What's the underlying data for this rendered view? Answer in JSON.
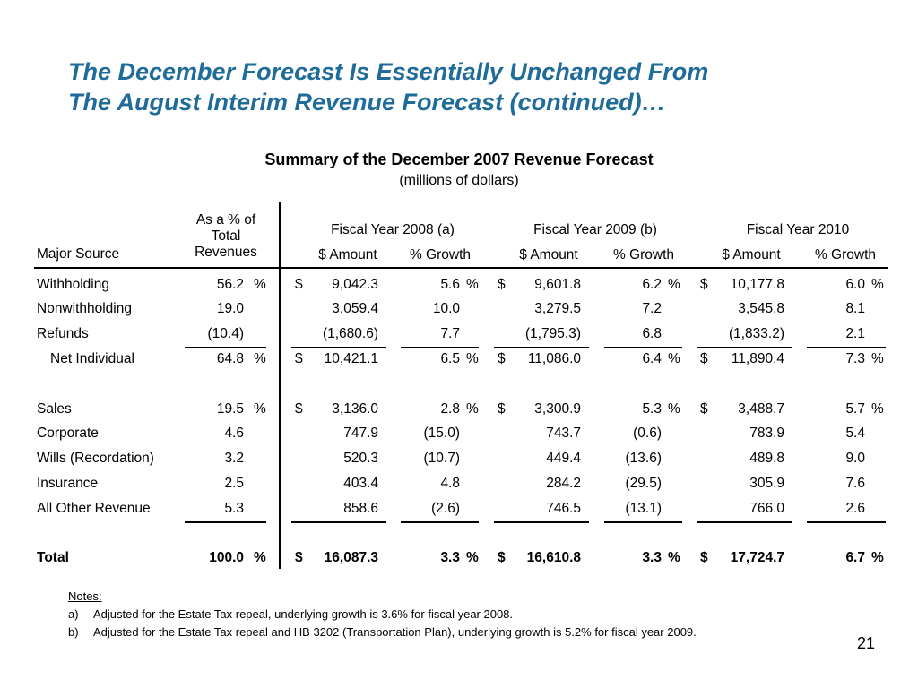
{
  "title_line1": "The December Forecast Is Essentially Unchanged From",
  "title_line2": "The August Interim Revenue Forecast (continued)…",
  "table_title": "Summary of the December 2007 Revenue Forecast",
  "table_units": "(millions of dollars)",
  "headers": {
    "major_source": "Major Source",
    "pct_line1": "As a % of",
    "pct_line2": "Total",
    "pct_line3": "Revenues",
    "fy2008": "Fiscal Year 2008 (a)",
    "fy2009": "Fiscal Year 2009 (b)",
    "fy2010": "Fiscal Year 2010",
    "amount": "$ Amount",
    "growth": "% Growth"
  },
  "rows": [
    {
      "source": "Withholding",
      "pct": "56.2",
      "pct_sym": "%",
      "dollar": true,
      "a08": "9,042.3",
      "g08": "5.6",
      "g08_sym": "%",
      "a09": "9,601.8",
      "g09": "6.2",
      "g09_sym": "%",
      "a10": "10,177.8",
      "g10": "6.0",
      "g10_sym": "%"
    },
    {
      "source": "Nonwithholding",
      "pct": "19.0",
      "pct_sym": "",
      "dollar": false,
      "a08": "3,059.4",
      "g08": "10.0",
      "g08_sym": "",
      "a09": "3,279.5",
      "g09": "7.2",
      "g09_sym": "",
      "a10": "3,545.8",
      "g10": "8.1",
      "g10_sym": ""
    },
    {
      "source": "Refunds",
      "pct": "(10.4)",
      "pct_sym": "",
      "dollar": false,
      "a08": "(1,680.6)",
      "g08": "7.7",
      "g08_sym": "",
      "a09": "(1,795.3)",
      "g09": "6.8",
      "g09_sym": "",
      "a10": "(1,833.2)",
      "g10": "2.1",
      "g10_sym": ""
    },
    {
      "source": "Net Individual",
      "pct": "64.8",
      "pct_sym": "%",
      "dollar": true,
      "a08": "10,421.1",
      "g08": "6.5",
      "g08_sym": "%",
      "a09": "11,086.0",
      "g09": "6.4",
      "g09_sym": "%",
      "a10": "11,890.4",
      "g10": "7.3",
      "g10_sym": "%"
    },
    {
      "source": "Sales",
      "pct": "19.5",
      "pct_sym": "%",
      "dollar": true,
      "a08": "3,136.0",
      "g08": "2.8",
      "g08_sym": "%",
      "a09": "3,300.9",
      "g09": "5.3",
      "g09_sym": "%",
      "a10": "3,488.7",
      "g10": "5.7",
      "g10_sym": "%"
    },
    {
      "source": "Corporate",
      "pct": "4.6",
      "pct_sym": "",
      "dollar": false,
      "a08": "747.9",
      "g08": "(15.0)",
      "g08_sym": "",
      "a09": "743.7",
      "g09": "(0.6)",
      "g09_sym": "",
      "a10": "783.9",
      "g10": "5.4",
      "g10_sym": ""
    },
    {
      "source": "Wills (Recordation)",
      "pct": "3.2",
      "pct_sym": "",
      "dollar": false,
      "a08": "520.3",
      "g08": "(10.7)",
      "g08_sym": "",
      "a09": "449.4",
      "g09": "(13.6)",
      "g09_sym": "",
      "a10": "489.8",
      "g10": "9.0",
      "g10_sym": ""
    },
    {
      "source": "Insurance",
      "pct": "2.5",
      "pct_sym": "",
      "dollar": false,
      "a08": "403.4",
      "g08": "4.8",
      "g08_sym": "",
      "a09": "284.2",
      "g09": "(29.5)",
      "g09_sym": "",
      "a10": "305.9",
      "g10": "7.6",
      "g10_sym": ""
    },
    {
      "source": "All Other Revenue",
      "pct": "5.3",
      "pct_sym": "",
      "dollar": false,
      "a08": "858.6",
      "g08": "(2.6)",
      "g08_sym": "",
      "a09": "746.5",
      "g09": "(13.1)",
      "g09_sym": "",
      "a10": "766.0",
      "g10": "2.6",
      "g10_sym": ""
    },
    {
      "source": "Total",
      "pct": "100.0",
      "pct_sym": "%",
      "dollar": true,
      "a08": "16,087.3",
      "g08": "3.3",
      "g08_sym": "%",
      "a09": "16,610.8",
      "g09": "3.3",
      "g09_sym": "%",
      "a10": "17,724.7",
      "g10": "6.7",
      "g10_sym": "%"
    }
  ],
  "currency_symbol": "$",
  "notes": {
    "heading": "Notes:",
    "a_label": "a)",
    "a_text": "Adjusted for the Estate Tax repeal, underlying growth is 3.6% for fiscal year 2008.",
    "b_label": "b)",
    "b_text": "Adjusted for the Estate Tax repeal and HB 3202 (Transportation Plan), underlying growth is 5.2% for fiscal year 2009."
  },
  "page_number": "21"
}
